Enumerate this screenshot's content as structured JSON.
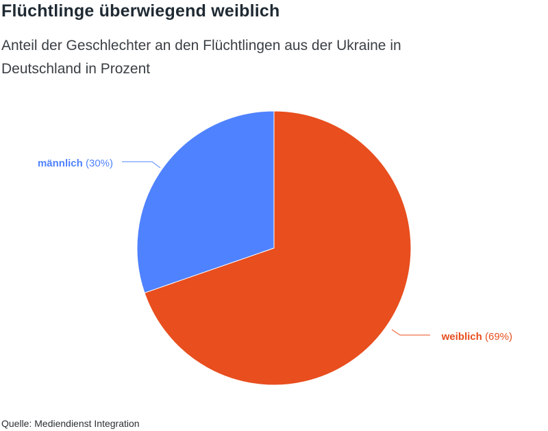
{
  "title": "Flüchtlinge überwiegend weiblich",
  "subtitle": "Anteil der Geschlechter an den Flüchtlingen aus der Ukraine in Deutschland in Prozent",
  "source": "Quelle: Mediendienst Integration",
  "chart_data": {
    "type": "pie",
    "title": "Flüchtlinge überwiegend weiblich",
    "subtitle": "Anteil der Geschlechter an den Flüchtlingen aus der Ukraine in Deutschland in Prozent",
    "slices": [
      {
        "label": "weiblich",
        "value": 69,
        "value_label": "(69%)",
        "color": "#e84e1e"
      },
      {
        "label": "männlich",
        "value": 30,
        "value_label": "(30%)",
        "color": "#4f82ff"
      }
    ]
  }
}
